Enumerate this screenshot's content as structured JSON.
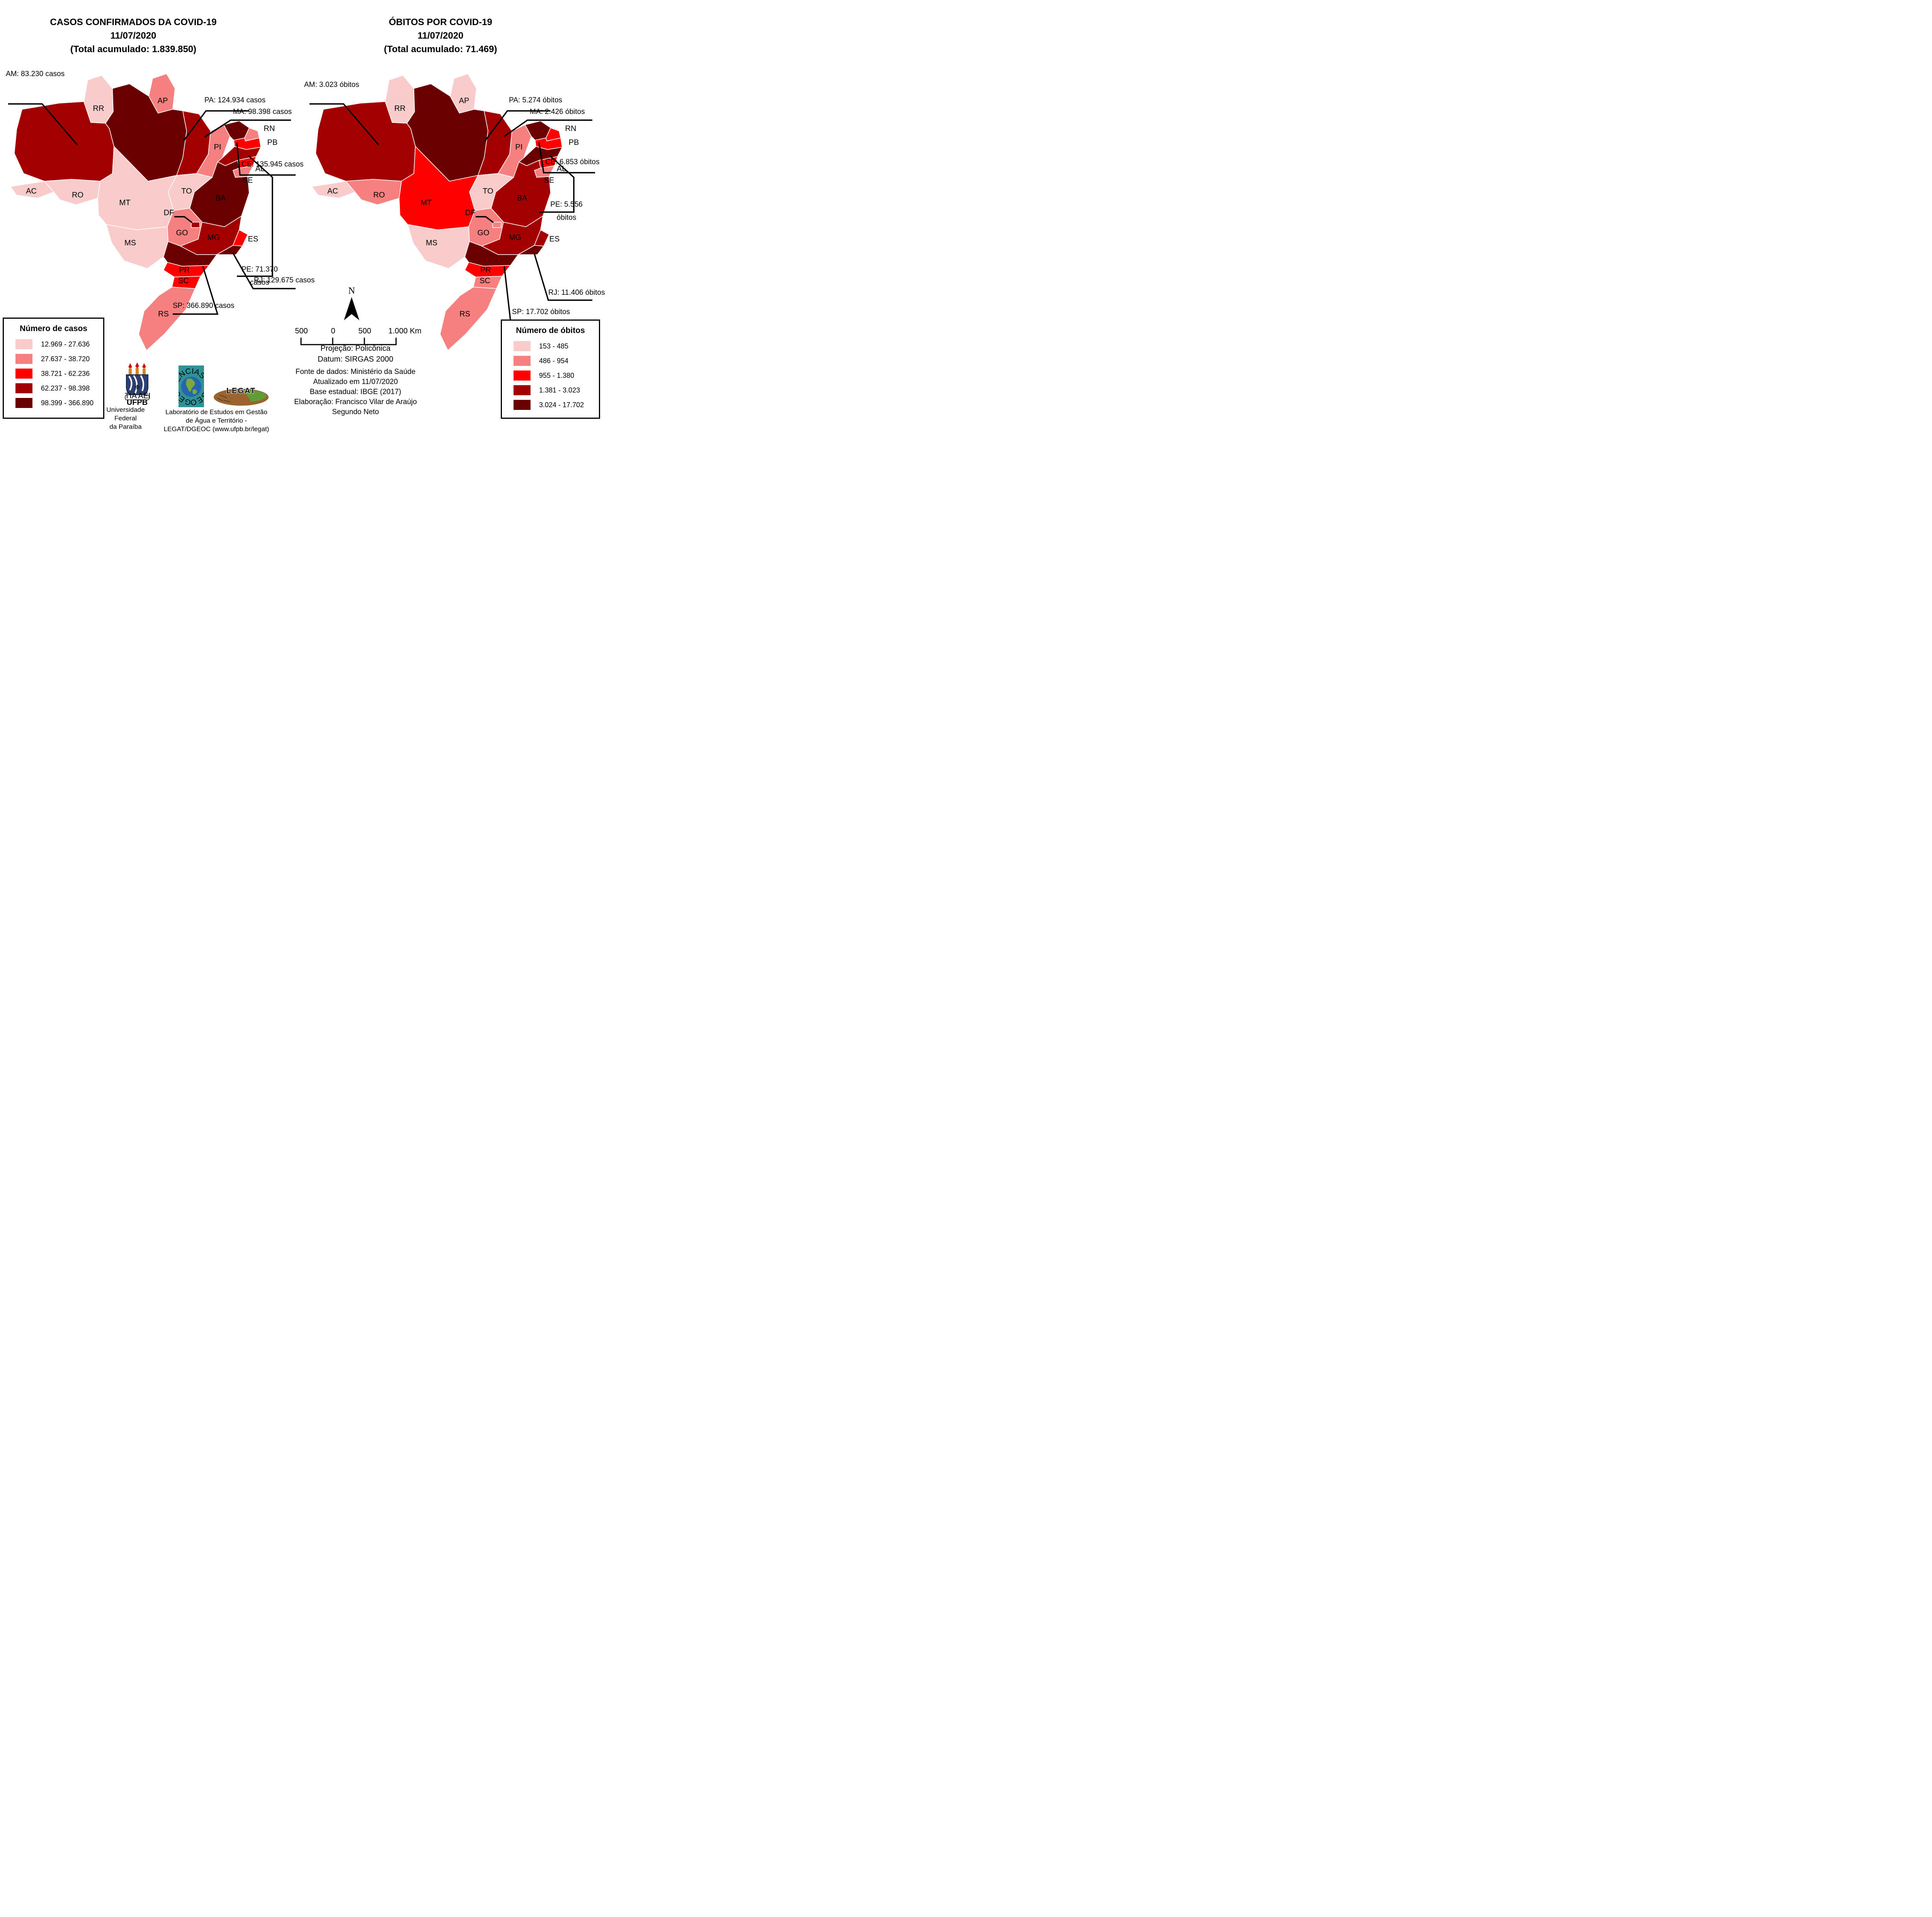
{
  "left_map": {
    "title": "CASOS CONFIRMADOS DA COVID-19\n11/07/2020\n(Total acumulado: 1.839.850)",
    "callouts": {
      "AM": "AM: 83.230 casos",
      "PA": "PA: 124.934 casos",
      "MA": "MA: 98.398 casos",
      "CE": "CE: 135.945 casos",
      "PE": "PE: 71.370\ncasos",
      "RJ": "RJ: 129.675 casos",
      "SP": "SP: 366.890 casos"
    },
    "legend": {
      "title": "Número de casos",
      "items": [
        {
          "range": "12.969 - 27.636",
          "color": "#F9CCCC"
        },
        {
          "range": "27.637 - 38.720",
          "color": "#F5807F"
        },
        {
          "range": "38.721 - 62.236",
          "color": "#FE0000"
        },
        {
          "range": "62.237 - 98.398",
          "color": "#A30101"
        },
        {
          "range": "98.399 - 366.890",
          "color": "#6B0001"
        }
      ]
    },
    "state_classes": {
      "AC": 1,
      "RR": 1,
      "RO": 1,
      "MT": 1,
      "MS": 1,
      "TO": 1,
      "AP": 2,
      "PI": 2,
      "RN": 2,
      "SE": 2,
      "GO": 2,
      "RS": 2,
      "PB": 3,
      "AL": 3,
      "ES": 3,
      "PR": 3,
      "SC": 3,
      "AM": 4,
      "MA": 4,
      "PE": 4,
      "DF": 4,
      "MG": 4,
      "PA": 5,
      "CE": 5,
      "BA": 5,
      "RJ": 5,
      "SP": 5
    }
  },
  "right_map": {
    "title": "ÓBITOS POR COVID-19\n11/07/2020\n(Total acumulado: 71.469)",
    "callouts": {
      "AM": "AM: 3.023 óbitos",
      "PA": "PA: 5.274 óbitos",
      "MA": "MA: 2.426 óbitos",
      "CE": "CE: 6.853 óbitos",
      "PE": "PE: 5.556\nóbitos",
      "RJ": "RJ: 11.406 óbitos",
      "SP": "SP: 17.702 óbitos"
    },
    "legend": {
      "title": "Número de óbitos",
      "items": [
        {
          "range": "153 - 485",
          "color": "#F9CCCC"
        },
        {
          "range": "486 - 954",
          "color": "#F5807F"
        },
        {
          "range": "955 - 1.380",
          "color": "#FE0000"
        },
        {
          "range": "1.381 - 3.023",
          "color": "#A30101"
        },
        {
          "range": "3.024 - 17.702",
          "color": "#6B0001"
        }
      ]
    },
    "state_classes": {
      "RR": 1,
      "AP": 1,
      "AC": 1,
      "MS": 1,
      "TO": 1,
      "RO": 2,
      "PI": 2,
      "SE": 2,
      "GO": 2,
      "DF": 2,
      "SC": 2,
      "RS": 2,
      "MT": 3,
      "RN": 3,
      "PB": 3,
      "AL": 3,
      "PR": 3,
      "AM": 4,
      "MA": 4,
      "BA": 4,
      "MG": 4,
      "ES": 4,
      "PA": 5,
      "CE": 5,
      "PE": 5,
      "RJ": 5,
      "SP": 5
    }
  },
  "class_colors": [
    "#F9CCCC",
    "#F5807F",
    "#FE0000",
    "#A30101",
    "#6B0001"
  ],
  "state_labels": {
    "RR": "RR",
    "AP": "AP",
    "AC": "AC",
    "RO": "RO",
    "MT": "MT",
    "TO": "TO",
    "PI": "PI",
    "RN": "RN",
    "PB": "PB",
    "AL": "AL",
    "SE": "SE",
    "BA": "BA",
    "DF": "DF",
    "GO": "GO",
    "MG": "MG",
    "MS": "MS",
    "ES": "ES",
    "PR": "PR",
    "SC": "SC",
    "RS": "RS"
  },
  "north": {
    "label": "N"
  },
  "scale_bar": {
    "labels": [
      "500",
      "0",
      "500",
      "1.000 Km"
    ]
  },
  "projection_info": "Projeção: Policônica\nDatum: SIRGAS 2000",
  "source_info": "Fonte de dados: Ministério da Saúde\nAtualizado em 11/07/2020\nBase estadual: IBGE (2017)\nElaboração: Francisco Vilar de Araújo\nSegundo Neto",
  "logos": {
    "ufpb_text": "UFPB",
    "ufpb_banner": "SAPIENTIA AEDIFICAT",
    "ufpb_caption": "Universidade Federal\nda Paraíba",
    "dgeoc_arc_text": "GEOCIÊNCIAS - DGEOC - DEPARTAMENTO DE ",
    "legat_text": "LEGAT",
    "legat_caption": "Laboratório de Estudos em Gestão\nde Água e Território -\nLEGAT/DGEOC (www.ufpb.br/legat)"
  }
}
